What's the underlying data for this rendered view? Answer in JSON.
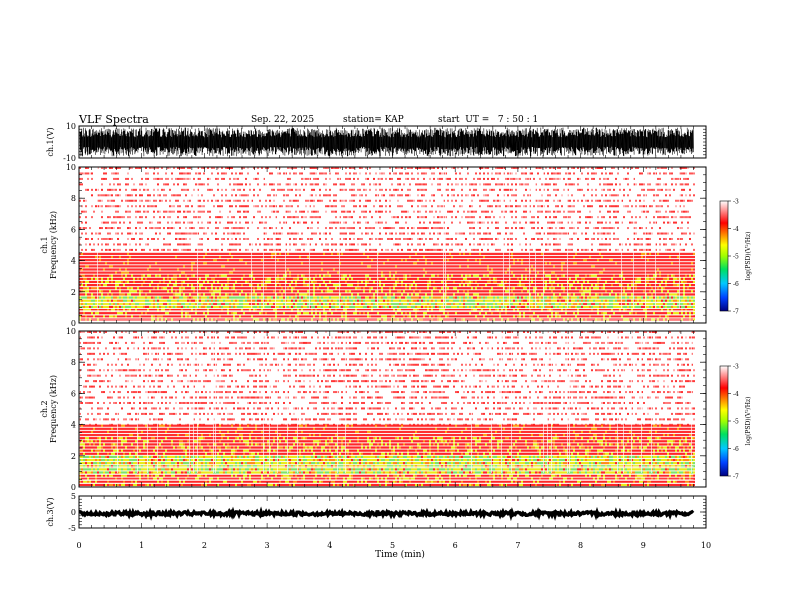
{
  "header": {
    "title": "VLF Spectra",
    "date": "Sep. 22, 2025",
    "station": "station= KAP",
    "start_ut": "start  UT =   7 : 50 : 1"
  },
  "colors": {
    "frame": "#000000",
    "trace": "#000000",
    "spectrum_bg": "#ffffff",
    "noise_red": "#ff1a1a",
    "band_yellow": "#e8e800",
    "band_green": "#3cd63c",
    "cbar_low": "#0000a0",
    "cbar_high": "#ffffff"
  },
  "chart_data": [
    {
      "type": "line",
      "id": "ch1-waveform",
      "ylabel": "ch.1(V)",
      "ylim": [
        -10,
        10
      ],
      "yticks": [
        "10",
        "-10"
      ],
      "xlim": [
        0,
        10
      ],
      "note": "dense noisy waveform, amplitude approx +/-8 V, ends at 9.8 min"
    },
    {
      "type": "heatmap",
      "id": "ch1-spectrogram",
      "ylabel": "ch.1\nFrequency (kHz)",
      "ylabel_lines": [
        "ch.1",
        "Frequency  (kHz)"
      ],
      "ylim": [
        0,
        10
      ],
      "yticks": [
        "0",
        "2",
        "4",
        "6",
        "8",
        "10"
      ],
      "xlim": [
        0,
        10
      ],
      "data_end_min": 9.8,
      "colorbar": {
        "label": "log(PSD)(V²/Hz)",
        "ticks": [
          "-3",
          "-4",
          "-5",
          "-6",
          "-7"
        ],
        "range": [
          -7,
          -3
        ]
      },
      "intense_band_khz": [
        1.0,
        1.8
      ],
      "enhanced_band_khz": [
        0,
        4.5
      ]
    },
    {
      "type": "heatmap",
      "id": "ch2-spectrogram",
      "ylabel_lines": [
        "ch.2",
        "Frequency  (kHz)"
      ],
      "ylim": [
        0,
        10
      ],
      "yticks": [
        "0",
        "2",
        "4",
        "6",
        "8",
        "10"
      ],
      "xlim": [
        0,
        10
      ],
      "data_end_min": 9.8,
      "colorbar": {
        "label": "log(PSD)(V²/Hz)",
        "ticks": [
          "-3",
          "-4",
          "-5",
          "-6",
          "-7"
        ],
        "range": [
          -7,
          -3
        ]
      },
      "intense_band_khz": [
        0.8,
        2.0
      ],
      "enhanced_band_khz": [
        0,
        4.0
      ]
    },
    {
      "type": "line",
      "id": "ch3-waveform",
      "ylabel": "ch.3(V)",
      "ylim": [
        -5,
        5
      ],
      "yticks": [
        "5",
        "0",
        "-5"
      ],
      "xlim": [
        0,
        10
      ],
      "level_v": -0.5,
      "note": "near-constant trace around -0.5 V with small ripple"
    }
  ],
  "xaxis": {
    "label": "Time  (min)",
    "ticks": [
      "0",
      "1",
      "2",
      "3",
      "4",
      "5",
      "6",
      "7",
      "8",
      "9",
      "10"
    ]
  }
}
